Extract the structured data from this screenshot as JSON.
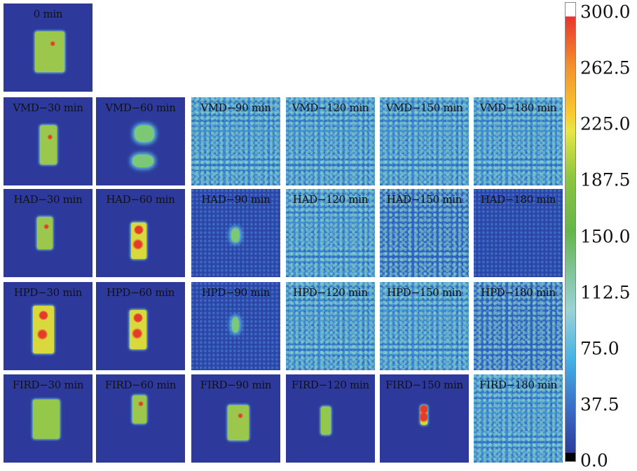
{
  "panels": {
    "baseline": "0 min",
    "rows": [
      {
        "labels": [
          "VMD−30 min",
          "VMD−60 min",
          "VMD−90 min",
          "VMD−120 min",
          "VMD−150 min",
          "VMD−180 min"
        ]
      },
      {
        "labels": [
          "HAD−30 min",
          "HAD−60 min",
          "HAD−90 min",
          "HAD−120 min",
          "HAD−150 min",
          "HAD−180 min"
        ]
      },
      {
        "labels": [
          "HPD−30 min",
          "HPD−60 min",
          "HPD−90 min",
          "HPD−120 min",
          "HPD−150 min",
          "HPD−180 min"
        ]
      },
      {
        "labels": [
          "FIRD−30 min",
          "FIRD−60 min",
          "FIRD−90 min",
          "FIRD−120 min",
          "FIRD−150 min",
          "FIRD−180 min"
        ]
      }
    ]
  },
  "colorbar": {
    "ticks": [
      "300.0",
      "262.5",
      "225.0",
      "187.5",
      "150.0",
      "112.5",
      "75.0",
      "37.5",
      "0.0"
    ],
    "min": 0,
    "max": 300
  }
}
